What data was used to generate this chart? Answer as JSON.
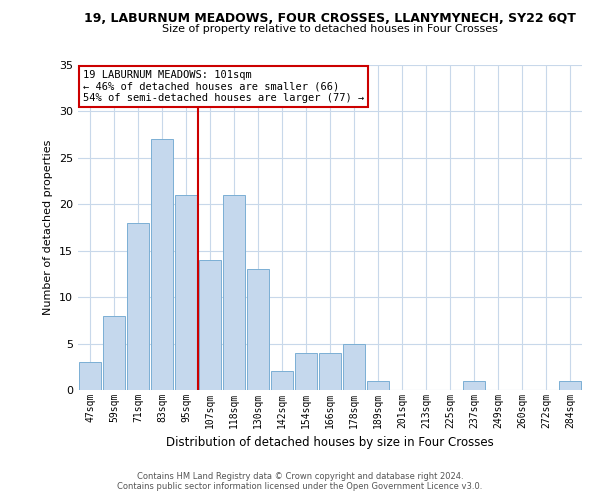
{
  "title": "19, LABURNUM MEADOWS, FOUR CROSSES, LLANYMYNECH, SY22 6QT",
  "subtitle": "Size of property relative to detached houses in Four Crosses",
  "xlabel": "Distribution of detached houses by size in Four Crosses",
  "ylabel": "Number of detached properties",
  "bin_labels": [
    "47sqm",
    "59sqm",
    "71sqm",
    "83sqm",
    "95sqm",
    "107sqm",
    "118sqm",
    "130sqm",
    "142sqm",
    "154sqm",
    "166sqm",
    "178sqm",
    "189sqm",
    "201sqm",
    "213sqm",
    "225sqm",
    "237sqm",
    "249sqm",
    "260sqm",
    "272sqm",
    "284sqm"
  ],
  "values": [
    3,
    8,
    18,
    27,
    21,
    14,
    21,
    13,
    2,
    4,
    4,
    5,
    1,
    0,
    0,
    0,
    1,
    0,
    0,
    0,
    1
  ],
  "bar_color": "#c5d8ed",
  "bar_edge_color": "#7bafd4",
  "vline_color": "#cc0000",
  "vline_x_idx": 5,
  "ylim": [
    0,
    35
  ],
  "yticks": [
    0,
    5,
    10,
    15,
    20,
    25,
    30,
    35
  ],
  "annotation_line1": "19 LABURNUM MEADOWS: 101sqm",
  "annotation_line2": "← 46% of detached houses are smaller (66)",
  "annotation_line3": "54% of semi-detached houses are larger (77) →",
  "annotation_box_color": "#ffffff",
  "annotation_border_color": "#cc0000",
  "footer1": "Contains HM Land Registry data © Crown copyright and database right 2024.",
  "footer2": "Contains public sector information licensed under the Open Government Licence v3.0.",
  "background_color": "#ffffff",
  "grid_color": "#c8d8ea"
}
